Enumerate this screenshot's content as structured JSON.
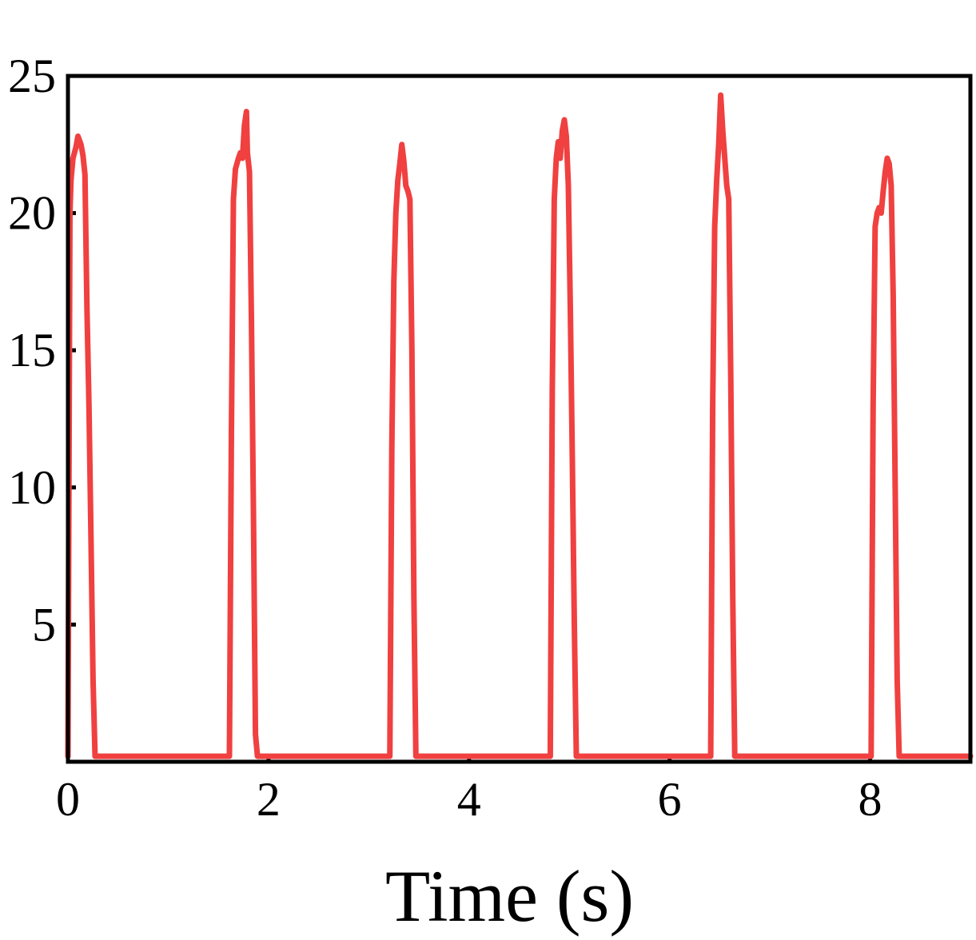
{
  "chart_data": {
    "type": "line",
    "title": "",
    "xlabel": "Time (s)",
    "ylabel": "",
    "xlim": [
      0,
      9
    ],
    "ylim": [
      0,
      25
    ],
    "x_ticks": [
      0,
      2,
      4,
      6,
      8
    ],
    "x_tick_labels": [
      "0",
      "2",
      "4",
      "6",
      "8"
    ],
    "y_ticks": [
      5,
      10,
      15,
      20,
      25
    ],
    "y_tick_labels": [
      "5",
      "10",
      "15",
      "20",
      "25"
    ],
    "grid": false,
    "legend": "none",
    "series": [
      {
        "color": "#f04040",
        "x": [
          0.0,
          0.02,
          0.03,
          0.05,
          0.08,
          0.1,
          0.13,
          0.15,
          0.17,
          0.19,
          0.21,
          0.23,
          0.25,
          0.27,
          0.29,
          0.31,
          0.32,
          1.61,
          1.63,
          1.65,
          1.67,
          1.7,
          1.72,
          1.74,
          1.76,
          1.78,
          1.79,
          1.81,
          1.83,
          1.85,
          1.87,
          1.89,
          1.91,
          1.92,
          3.21,
          3.23,
          3.25,
          3.27,
          3.29,
          3.31,
          3.33,
          3.35,
          3.37,
          3.39,
          3.41,
          3.43,
          3.45,
          3.47,
          3.49,
          3.51,
          3.52,
          4.81,
          4.83,
          4.85,
          4.87,
          4.89,
          4.91,
          4.93,
          4.95,
          4.97,
          4.99,
          5.01,
          5.03,
          5.05,
          5.07,
          5.09,
          5.11,
          5.12,
          6.41,
          6.43,
          6.45,
          6.47,
          6.49,
          6.51,
          6.53,
          6.55,
          6.57,
          6.59,
          6.61,
          6.63,
          6.65,
          6.67,
          6.69,
          6.71,
          6.72,
          8.01,
          8.03,
          8.05,
          8.07,
          8.09,
          8.11,
          8.13,
          8.15,
          8.17,
          8.19,
          8.21,
          8.23,
          8.25,
          8.27,
          8.29,
          8.31,
          8.32,
          9.0
        ],
        "y": [
          0.2,
          20.0,
          21.2,
          22.0,
          22.4,
          22.8,
          22.5,
          22.1,
          21.4,
          16.5,
          13.0,
          8.0,
          3.0,
          0.2,
          0.2,
          0.2,
          0.2,
          0.2,
          12.0,
          20.5,
          21.6,
          22.0,
          22.2,
          22.0,
          23.2,
          23.7,
          22.2,
          21.5,
          16.0,
          9.0,
          1.0,
          0.2,
          0.2,
          0.2,
          0.2,
          11.5,
          17.5,
          20.0,
          21.2,
          21.8,
          22.5,
          21.9,
          21.0,
          20.8,
          20.5,
          15.0,
          6.0,
          0.2,
          0.2,
          0.2,
          0.2,
          0.2,
          13.5,
          20.5,
          22.0,
          22.6,
          22.0,
          23.0,
          23.4,
          22.8,
          21.0,
          16.5,
          11.0,
          5.0,
          0.2,
          0.2,
          0.2,
          0.2,
          0.2,
          13.0,
          19.5,
          21.2,
          22.5,
          24.3,
          23.0,
          22.0,
          21.0,
          20.5,
          14.0,
          6.0,
          0.2,
          0.2,
          0.2,
          0.2,
          0.2,
          0.2,
          13.0,
          19.5,
          20.0,
          20.2,
          20.0,
          20.8,
          21.5,
          22.0,
          21.8,
          21.0,
          17.0,
          10.0,
          3.0,
          0.2,
          0.2,
          0.2,
          0.2
        ]
      }
    ]
  }
}
